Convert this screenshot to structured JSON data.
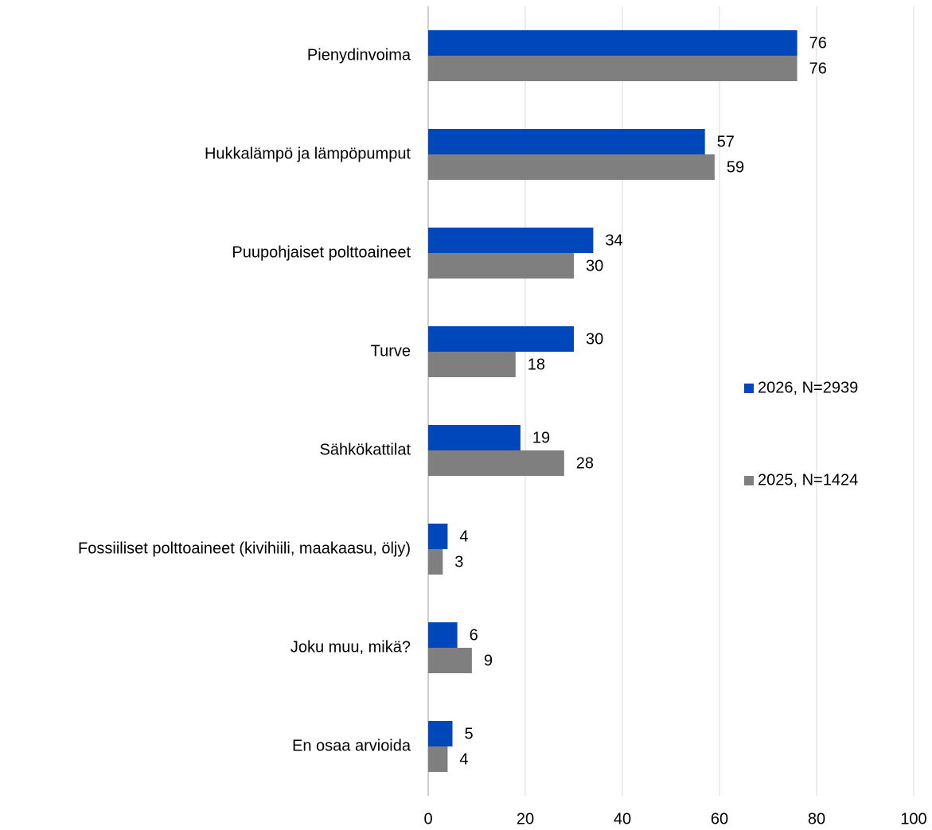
{
  "chart_data": {
    "type": "barh",
    "categories": [
      "Pienydinvoima",
      "Hukkalämpö ja lämpöpumput",
      "Puupohjaiset polttoaineet",
      "Turve",
      "Sähkökattilat",
      "Fossiiliset polttoaineet (kivihiili, maakaasu, öljy)",
      "Joku muu, mikä?",
      "En osaa arvioida"
    ],
    "series": [
      {
        "name": "2026, N=2939",
        "color": "#0047bb",
        "values": [
          76,
          57,
          34,
          30,
          19,
          4,
          6,
          5
        ]
      },
      {
        "name": "2025, N=1424",
        "color": "#7f7f7f",
        "values": [
          76,
          59,
          30,
          18,
          28,
          3,
          9,
          4
        ]
      }
    ],
    "xlim": [
      0,
      100
    ],
    "xticks": [
      0,
      20,
      40,
      60,
      80,
      100
    ],
    "grid": true,
    "legend": "right"
  }
}
